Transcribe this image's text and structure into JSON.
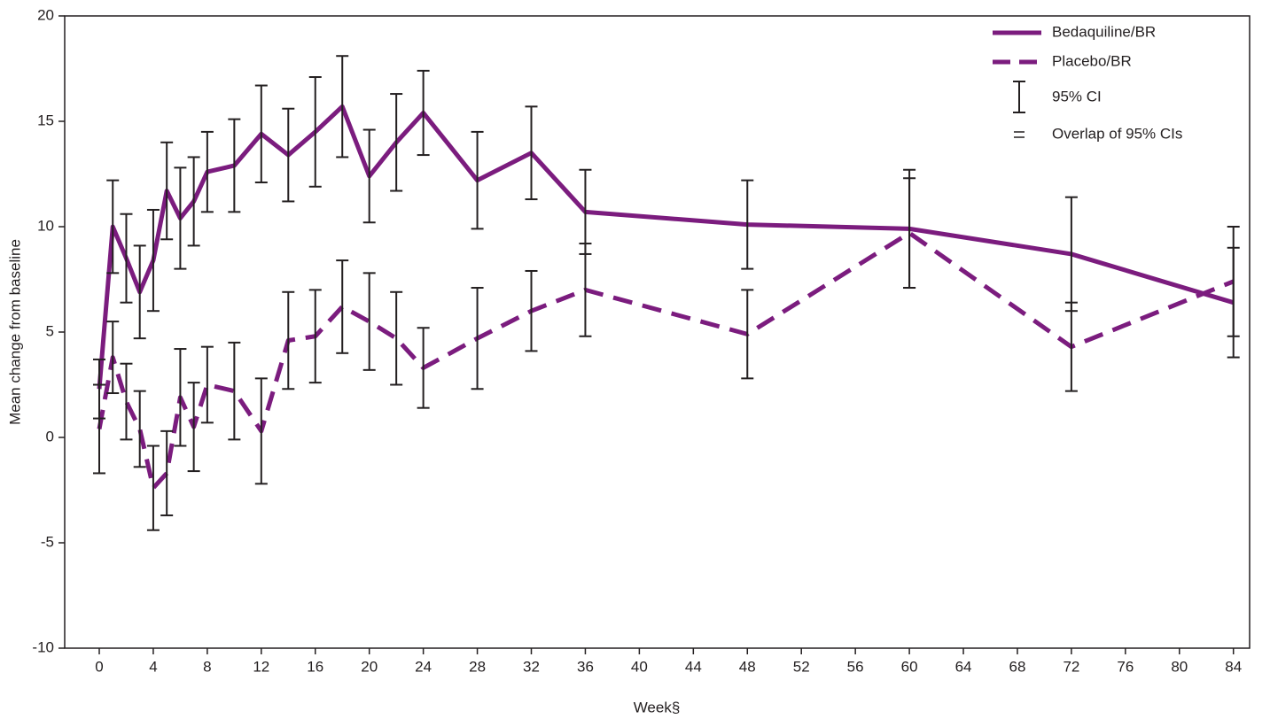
{
  "chart_data": {
    "type": "line",
    "x_label": "Week§",
    "y_label": "Mean change from baseline",
    "x": [
      0,
      1,
      2,
      3,
      4,
      5,
      6,
      7,
      8,
      10,
      12,
      14,
      16,
      18,
      20,
      22,
      24,
      28,
      32,
      36,
      48,
      60,
      72,
      84
    ],
    "series": [
      {
        "name": "Bedaquiline/BR",
        "color": "#7b1c7e",
        "dashed": false,
        "values": [
          2.3,
          10.0,
          8.5,
          6.9,
          8.4,
          11.7,
          10.4,
          11.2,
          12.6,
          12.9,
          14.4,
          13.4,
          14.5,
          15.7,
          12.4,
          14.0,
          15.4,
          12.2,
          13.5,
          10.7,
          10.1,
          9.9,
          8.7,
          6.4
        ],
        "errors": [
          1.4,
          2.2,
          2.1,
          2.2,
          2.4,
          2.3,
          2.4,
          2.1,
          1.9,
          2.2,
          2.3,
          2.2,
          2.6,
          2.4,
          2.2,
          2.3,
          2.0,
          2.3,
          2.2,
          2.0,
          2.1,
          2.8,
          2.7,
          2.6
        ]
      },
      {
        "name": "Placebo/BR",
        "color": "#7b1c7e",
        "dashed": true,
        "values": [
          0.4,
          3.8,
          1.7,
          0.4,
          -2.4,
          -1.7,
          1.9,
          0.5,
          2.5,
          2.2,
          0.3,
          4.6,
          4.8,
          6.2,
          5.5,
          4.7,
          3.3,
          4.7,
          6.0,
          7.0,
          4.9,
          9.7,
          4.3,
          7.4
        ],
        "errors": [
          2.1,
          1.7,
          1.8,
          1.8,
          2.0,
          2.0,
          2.3,
          2.1,
          1.8,
          2.3,
          2.5,
          2.3,
          2.2,
          2.2,
          2.3,
          2.2,
          1.9,
          2.4,
          1.9,
          2.2,
          2.1,
          2.6,
          2.1,
          2.6
        ]
      }
    ],
    "legend_extra": [
      "95% CI",
      "Overlap of 95% CIs"
    ],
    "legend_position": "upper right",
    "xlim": [
      -2.56,
      85.2
    ],
    "xticks": [
      0,
      4,
      8,
      12,
      16,
      20,
      24,
      28,
      32,
      36,
      40,
      44,
      48,
      52,
      56,
      60,
      64,
      68,
      72,
      76,
      80,
      84
    ],
    "ylim": [
      -10,
      20
    ],
    "yticks": [
      -10,
      -5,
      0,
      5,
      10,
      15,
      20
    ]
  }
}
